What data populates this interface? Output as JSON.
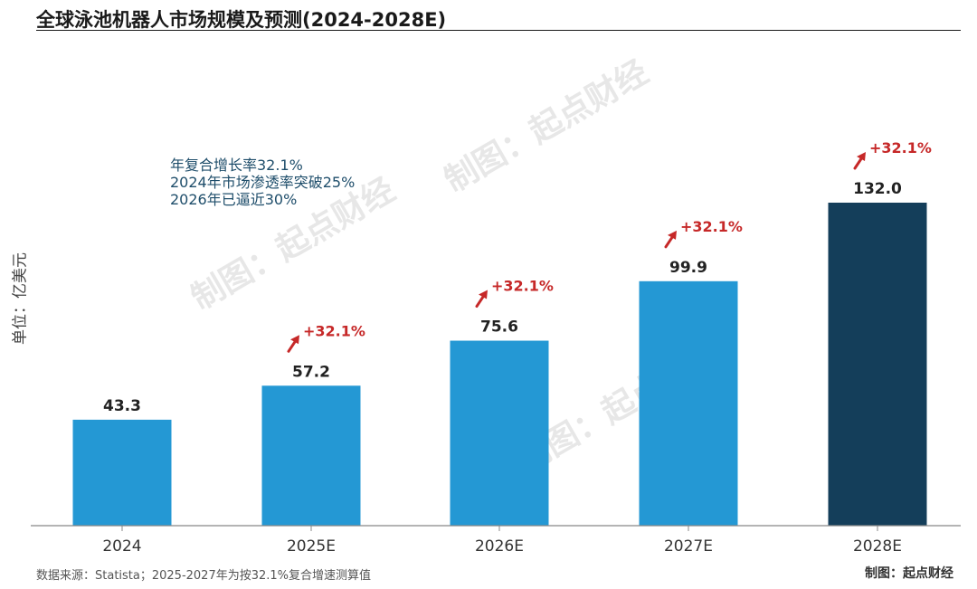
{
  "title": "全球泳池机器人市场规模及预测(2024-2028E)",
  "annotations": [
    "年复合增长率32.1%",
    "2024年市场渗透率突破25%",
    "2026年已逼近30%"
  ],
  "watermark": "制图：起点财经",
  "source_note": "数据来源：Statista；2025-2027年为按32.1%复合增速测算值",
  "credit": "制图：起点财经",
  "colors": {
    "bar": "#2498d4",
    "bar_highlight": "#143e5a",
    "growth": "#c62828",
    "axis": "#888888"
  },
  "chart_data": {
    "type": "bar",
    "title": "全球泳池机器人市场规模及预测(2024-2028E)",
    "ylabel": "单位：亿美元",
    "xlabel": "",
    "categories": [
      "2024",
      "2025E",
      "2026E",
      "2027E",
      "2028E"
    ],
    "values": [
      43.3,
      57.2,
      75.6,
      99.9,
      132.0
    ],
    "value_labels": [
      "43.3",
      "57.2",
      "75.6",
      "99.9",
      "132.0"
    ],
    "growth_labels": [
      "",
      "+32.1%",
      "+32.1%",
      "+32.1%",
      "+32.1%"
    ],
    "highlight_index": 4,
    "ylim": [
      0,
      132
    ]
  }
}
